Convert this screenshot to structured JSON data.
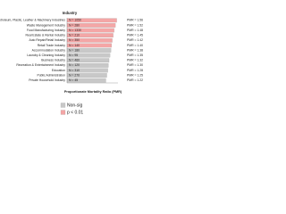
{
  "chart_data": {
    "type": "hbar",
    "title": "Industry",
    "categories": [
      "Petroleum, Plastic, Leather & Machinery Industries",
      "Waste Management Industry",
      "Food Manufacturing Industry",
      "Real Estate & Rental Industry",
      "Auto Repair/Retail Industry",
      "Retail Trade Industry",
      "Accommodation Industry",
      "Laundry & Cleaning Industry",
      "Business Industry",
      "Recreation & Entertainment Industry",
      "Education",
      "Public Administration",
      "Private Household Industry"
    ],
    "values": [
      1.56,
      1.52,
      1.48,
      1.45,
      1.42,
      1.4,
      1.38,
      1.35,
      1.32,
      1.3,
      1.28,
      1.25,
      1.22
    ],
    "value_labels": [
      "PMR = 1.56",
      "PMR = 1.52",
      "PMR = 1.48",
      "PMR = 1.45",
      "PMR = 1.42",
      "PMR = 1.40",
      "PMR = 1.38",
      "PMR = 1.35",
      "PMR = 1.32",
      "PMR = 1.30",
      "PMR = 1.28",
      "PMR = 1.25",
      "PMR = 1.22"
    ],
    "bar_labels": [
      "N = 1050",
      "N = 280",
      "N = 1330",
      "N = 210",
      "N = 350",
      "N = 140",
      "N = 180",
      "N = 95",
      "N = 460",
      "N = 120",
      "N = 310",
      "N = 270",
      "N = 45"
    ],
    "colors": [
      "#f4a6a6",
      "#f4a6a6",
      "#f4a6a6",
      "#f4a6a6",
      "#f4a6a6",
      "#f4a6a6",
      "#c8c8c8",
      "#c8c8c8",
      "#c8c8c8",
      "#c8c8c8",
      "#c8c8c8",
      "#c8c8c8",
      "#c8c8c8"
    ],
    "xlim": [
      0,
      1.6
    ],
    "xlabel": "Proportionate Mortality Ratio (PMR)",
    "legend": [
      {
        "name": "Non-sig",
        "color": "#c8c8c8"
      },
      {
        "name": "p < 0.01",
        "color": "#f4a6a6"
      }
    ]
  }
}
